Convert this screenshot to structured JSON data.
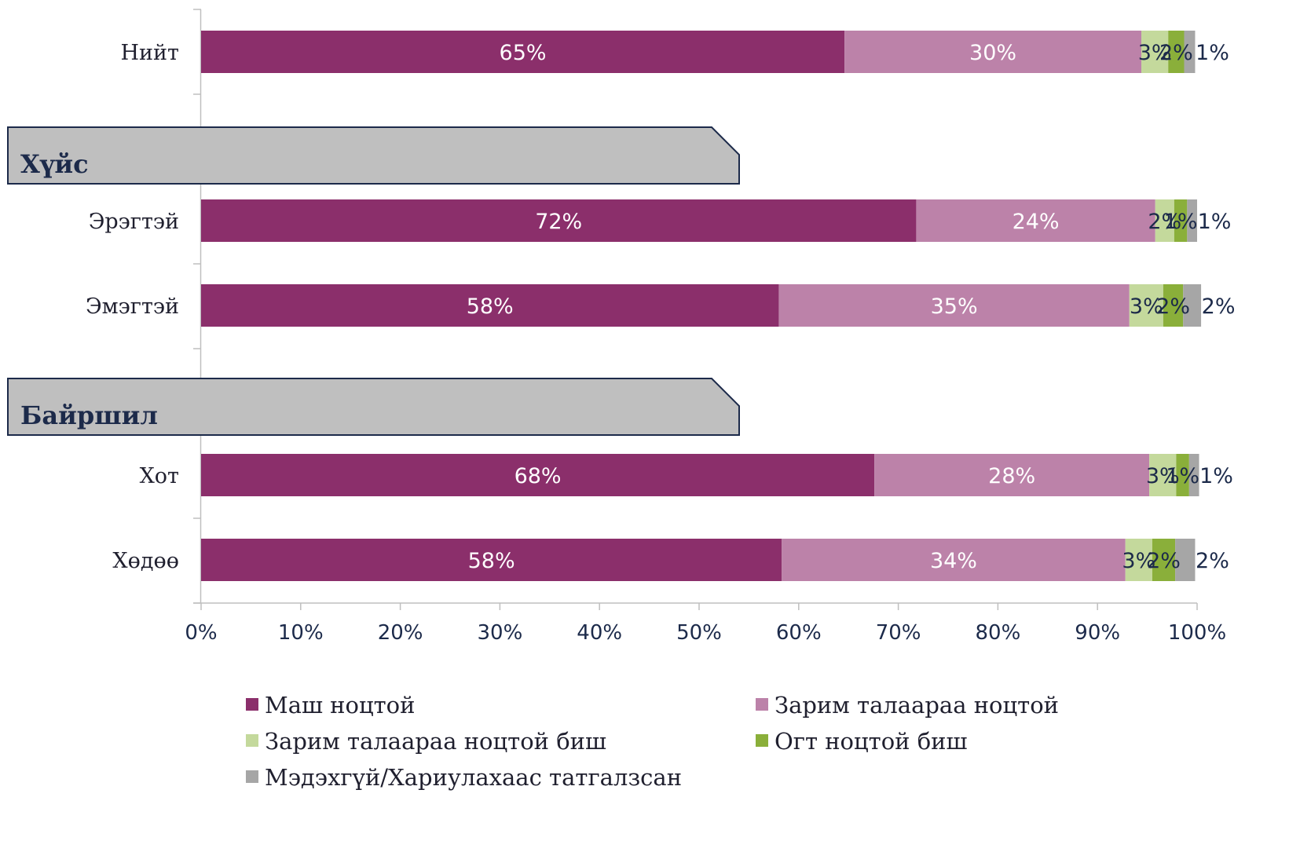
{
  "chart_data": {
    "type": "bar",
    "orientation": "horizontal",
    "stacked": true,
    "xlim": [
      0,
      100
    ],
    "x_ticks": [
      "0%",
      "10%",
      "20%",
      "30%",
      "40%",
      "50%",
      "60%",
      "70%",
      "80%",
      "90%",
      "100%"
    ],
    "grid": false,
    "legend_position": "bottom",
    "groups": [
      {
        "label": "Хүйс"
      },
      {
        "label": "Байршил"
      }
    ],
    "rows": [
      {
        "label": "Нийт",
        "values": [
          64.6,
          29.8,
          2.7,
          1.6,
          1.1
        ],
        "labels": [
          "65%",
          "30%",
          "3%",
          "2%",
          "1%"
        ]
      },
      {
        "label": "Эрэгтэй",
        "values": [
          71.8,
          24.0,
          1.9,
          1.3,
          1.0
        ],
        "labels": [
          "72%",
          "24%",
          "2%",
          "1%",
          "1%"
        ]
      },
      {
        "label": "Эмэгтэй",
        "values": [
          58.0,
          35.2,
          3.4,
          2.0,
          1.8
        ],
        "labels": [
          "58%",
          "35%",
          "3%",
          "2%",
          "2%"
        ]
      },
      {
        "label": "Хот",
        "values": [
          67.6,
          27.6,
          2.7,
          1.3,
          1.0
        ],
        "labels": [
          "68%",
          "28%",
          "3%",
          "1%",
          "1%"
        ]
      },
      {
        "label": "Хөдөө",
        "values": [
          58.3,
          34.5,
          2.7,
          2.3,
          2.0
        ],
        "labels": [
          "58%",
          "34%",
          "3%",
          "2%",
          "2%"
        ]
      }
    ],
    "series": [
      {
        "name": "Маш ноцтой",
        "color": "#8b2f6b",
        "label_color": "#ffffff"
      },
      {
        "name": "Зарим талаараа ноцтой",
        "color": "#bc82a9",
        "label_color": "#ffffff"
      },
      {
        "name": "Зарим талаараа ноцтой биш",
        "color": "#c4d99c",
        "label_color": "#1c2a4a"
      },
      {
        "name": "Огт ноцтой биш",
        "color": "#8aaf3a",
        "label_color": "#1c2a4a"
      },
      {
        "name": "Мэдэхгүй/Хариулахаас татгалзсан",
        "color": "#a6a6a6",
        "label_color": "#1c2a4a"
      }
    ]
  }
}
